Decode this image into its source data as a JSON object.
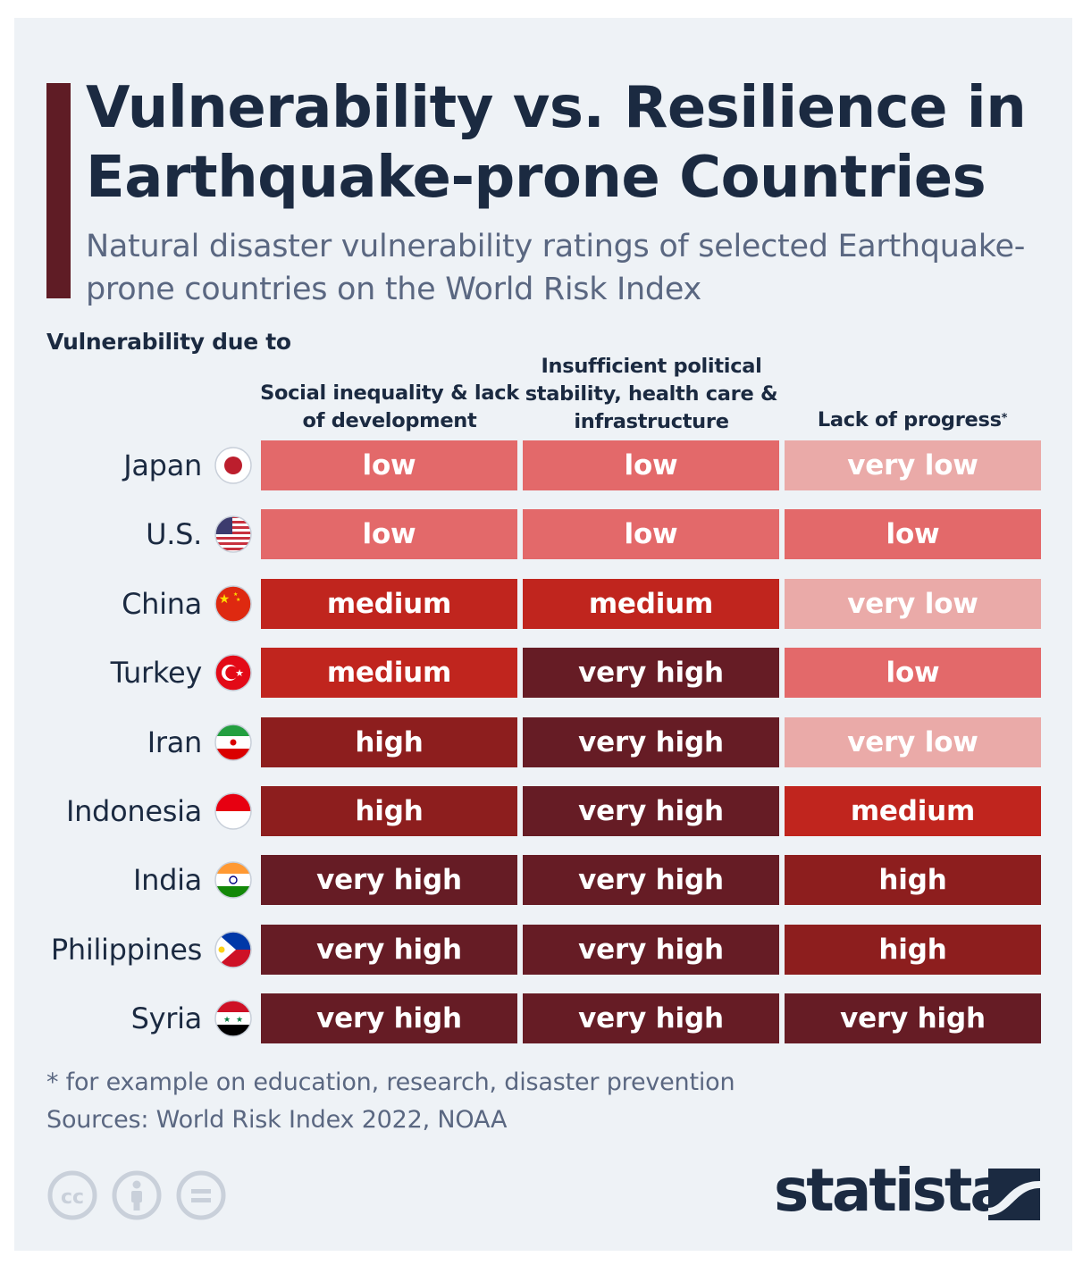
{
  "title": "Vulnerability vs. Resilience in Earthquake-prone Countries",
  "subtitle": "Natural disaster vulnerability ratings of selected Earthquake-prone countries on the World Risk Index",
  "section_label": "Vulnerability due to",
  "footnote": "* for example on education, research, disaster prevention",
  "sources": "Sources: World Risk Index 2022, NOAA",
  "brand": "statista",
  "license_icons": [
    "creative-commons-icon",
    "attribution-icon",
    "no-derivatives-icon"
  ],
  "colors": {
    "very low": "#eaaaa8",
    "low": "#e3696a",
    "medium": "#c0251e",
    "high": "#8d1e1e",
    "very high": "#661c25",
    "title": "#1b2a41",
    "accent": "#5f1c25"
  },
  "chart_data": {
    "type": "table",
    "columns": [
      "Social inequality & lack of development",
      "Insufficient political stability, health care & infrastructure",
      "Lack of progress*"
    ],
    "rows": [
      {
        "country": "Japan",
        "flag": "japan-flag-icon",
        "values": [
          "low",
          "low",
          "very low"
        ]
      },
      {
        "country": "U.S.",
        "flag": "us-flag-icon",
        "values": [
          "low",
          "low",
          "low"
        ]
      },
      {
        "country": "China",
        "flag": "china-flag-icon",
        "values": [
          "medium",
          "medium",
          "very low"
        ]
      },
      {
        "country": "Turkey",
        "flag": "turkey-flag-icon",
        "values": [
          "medium",
          "very high",
          "low"
        ]
      },
      {
        "country": "Iran",
        "flag": "iran-flag-icon",
        "values": [
          "high",
          "very high",
          "very low"
        ]
      },
      {
        "country": "Indonesia",
        "flag": "indonesia-flag-icon",
        "values": [
          "high",
          "very high",
          "medium"
        ]
      },
      {
        "country": "India",
        "flag": "india-flag-icon",
        "values": [
          "very high",
          "very high",
          "high"
        ]
      },
      {
        "country": "Philippines",
        "flag": "philippines-flag-icon",
        "values": [
          "very high",
          "very high",
          "high"
        ]
      },
      {
        "country": "Syria",
        "flag": "syria-flag-icon",
        "values": [
          "very high",
          "very high",
          "very high"
        ]
      }
    ]
  }
}
